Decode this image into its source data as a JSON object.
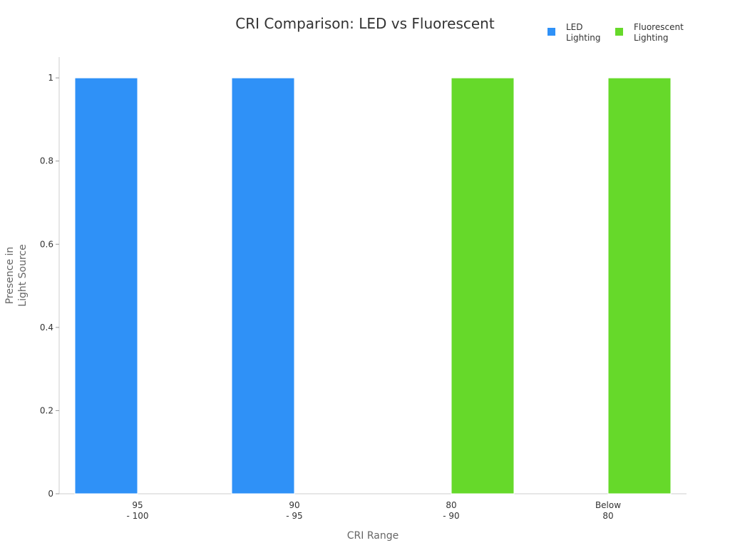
{
  "chart_data": {
    "type": "bar",
    "title": "CRI Comparison: LED vs Fluorescent",
    "xlabel": "CRI Range",
    "ylabel": "Presence in Light Source",
    "categories": [
      "95 - 100",
      "90 - 95",
      "80 - 90",
      "Below 80"
    ],
    "series": [
      {
        "name": "LED Lighting",
        "color": "#2F91F7",
        "values": [
          1,
          1,
          0,
          0
        ]
      },
      {
        "name": "Fluorescent Lighting",
        "color": "#66D92A",
        "values": [
          0,
          0,
          1,
          1
        ]
      }
    ],
    "ylim": [
      0,
      1.05
    ],
    "yticks": [
      0,
      0.2,
      0.4,
      0.6,
      0.8,
      1
    ],
    "grid": false,
    "legend_position": "top-right"
  }
}
